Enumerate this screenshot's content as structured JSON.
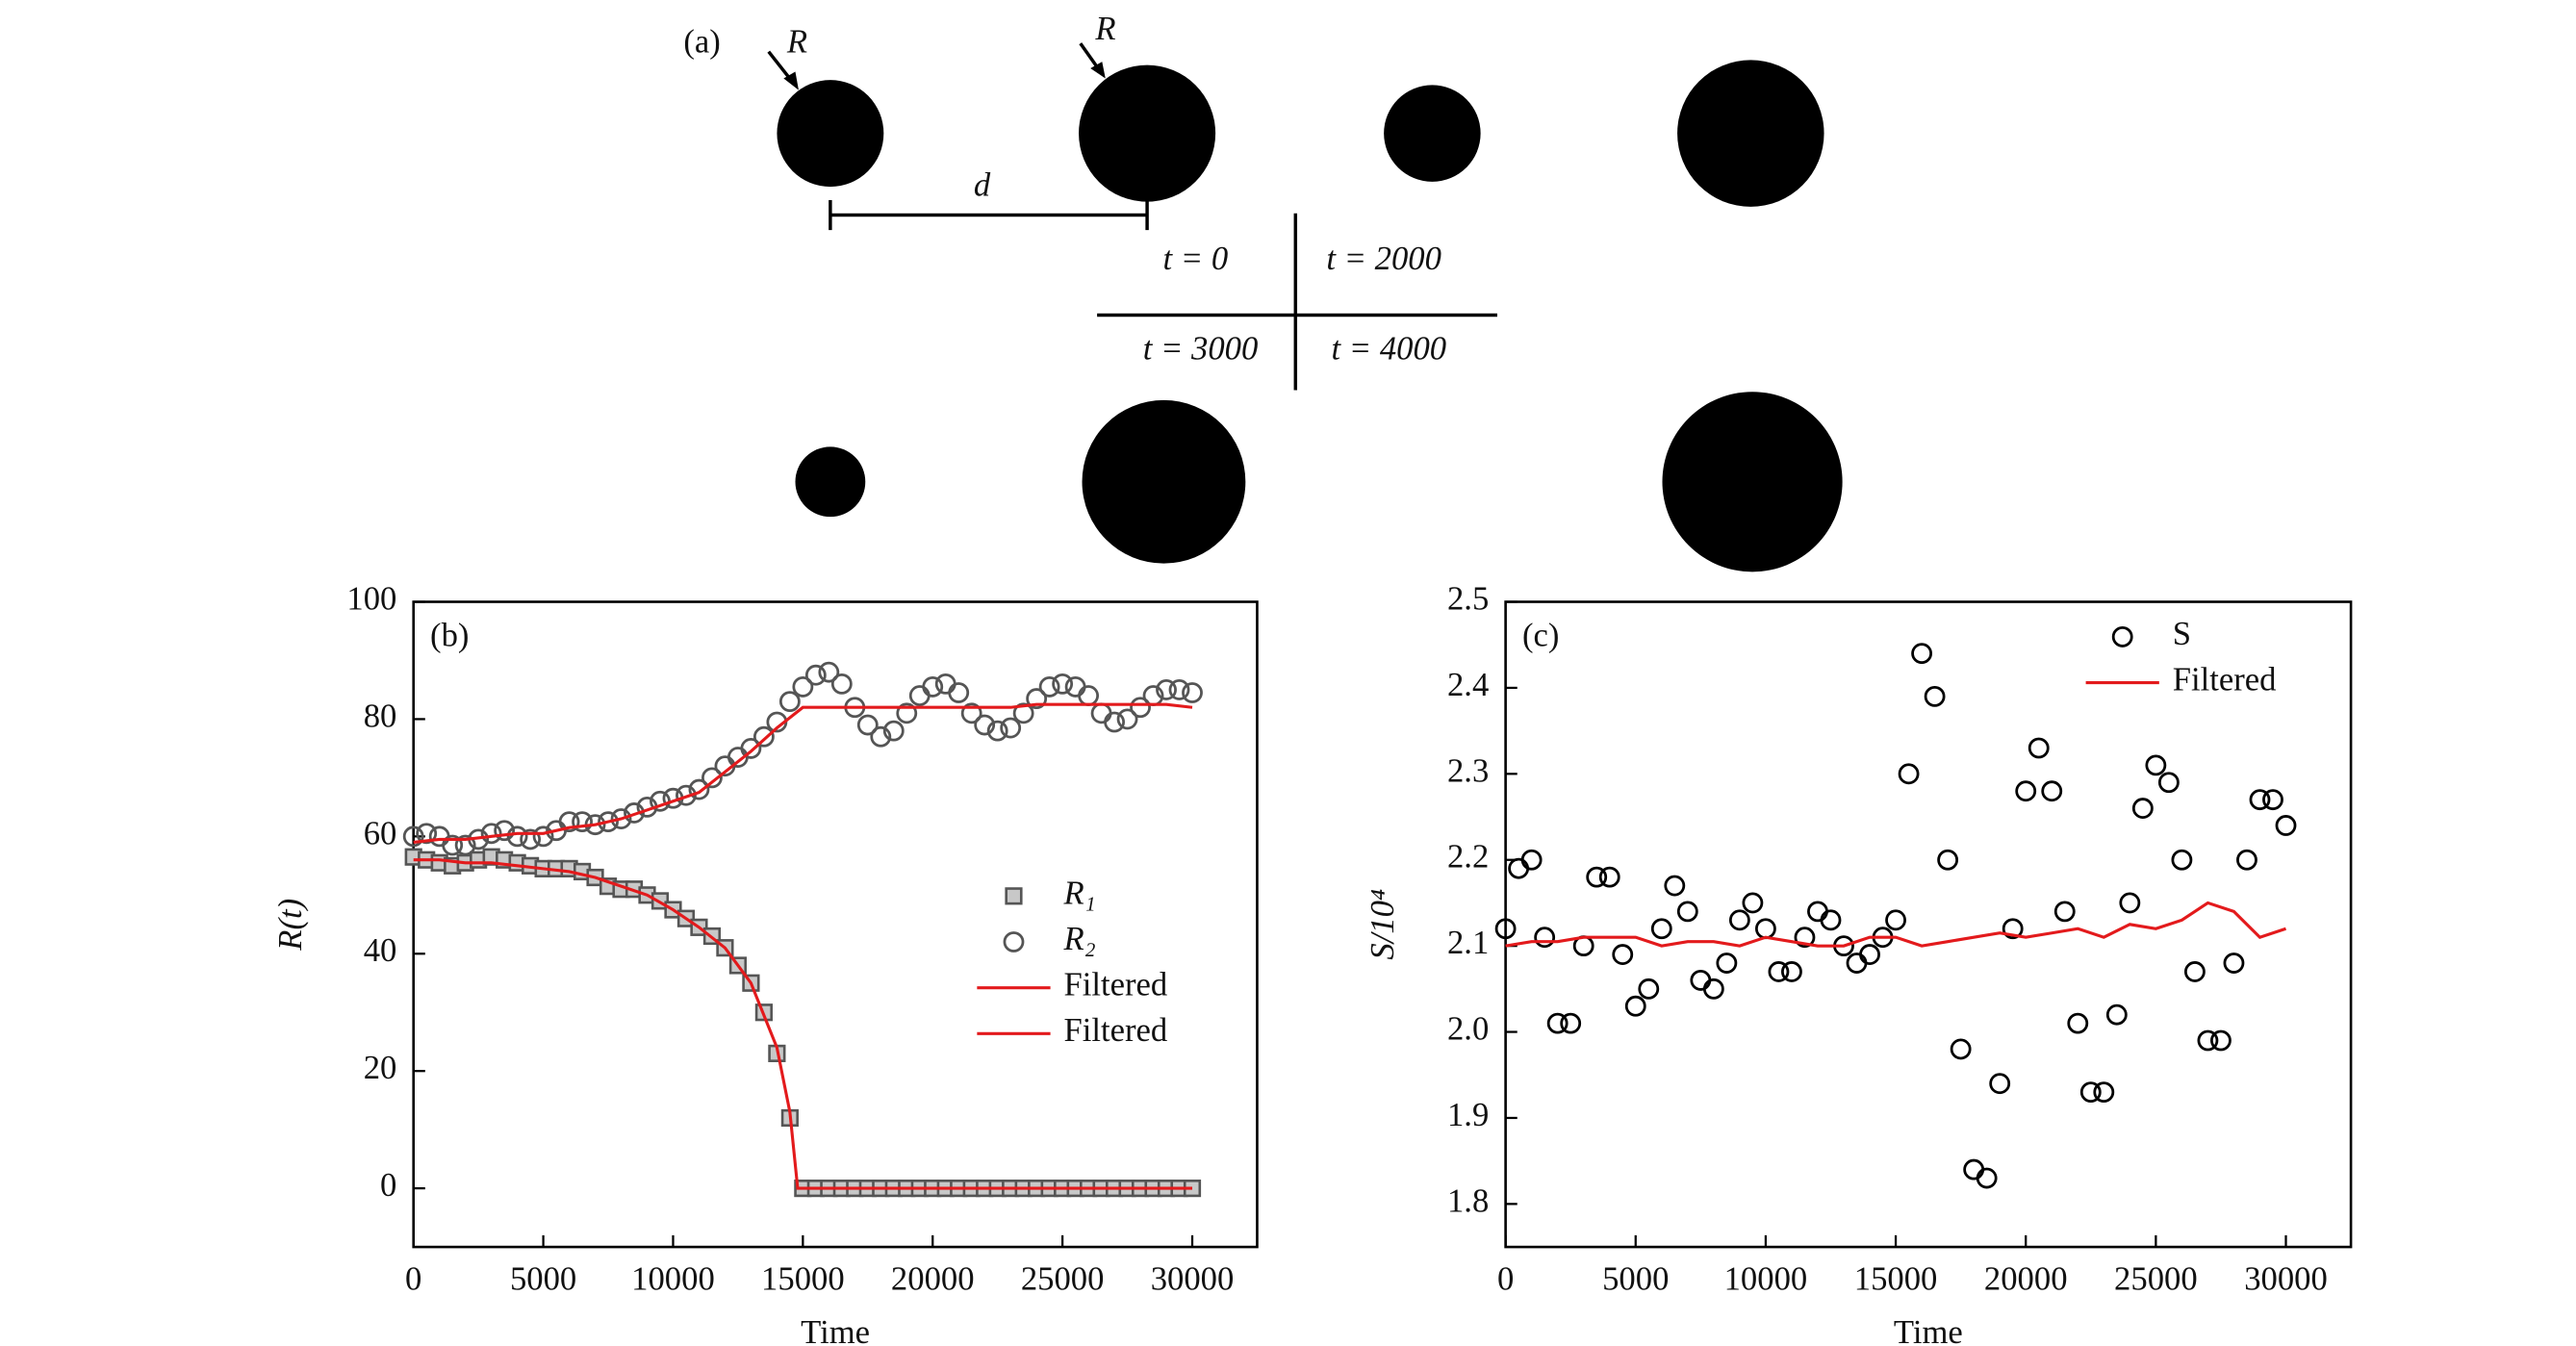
{
  "chart_data": [
    {
      "type": "diagram",
      "panel_label": "(a)",
      "radius_labels": [
        "R",
        "R"
      ],
      "distance_label": "d",
      "time_labels": [
        "t = 0",
        "t = 2000",
        "t = 3000",
        "t = 4000"
      ]
    },
    {
      "type": "scatter",
      "panel_label": "(b)",
      "xlabel": "Time",
      "ylabel": "R(t)",
      "xlim": [
        0,
        32500
      ],
      "ylim": [
        -10,
        100
      ],
      "xticks": [
        0,
        5000,
        10000,
        15000,
        20000,
        25000,
        30000
      ],
      "yticks": [
        0,
        20,
        40,
        60,
        80,
        100
      ],
      "legend": "right",
      "series": [
        {
          "name": "R₁",
          "marker": "square",
          "color": "#555555",
          "x": [
            0,
            500,
            1000,
            1500,
            2000,
            2500,
            3000,
            3500,
            4000,
            4500,
            5000,
            5500,
            6000,
            6500,
            7000,
            7500,
            8000,
            8500,
            9000,
            9500,
            10000,
            10500,
            11000,
            11500,
            12000,
            12500,
            13000,
            13500,
            14000,
            14500,
            15000,
            15500,
            16000,
            16500,
            17000,
            17500,
            18000,
            18500,
            19000,
            19500,
            20000,
            20500,
            21000,
            21500,
            22000,
            22500,
            23000,
            23500,
            24000,
            24500,
            25000,
            25500,
            26000,
            26500,
            27000,
            27500,
            28000,
            28500,
            29000,
            29500,
            30000
          ],
          "values": [
            56.5,
            56,
            55.5,
            55,
            55.5,
            56,
            56.5,
            56,
            55.5,
            55,
            54.5,
            54.5,
            54.5,
            54,
            53,
            51.5,
            51,
            51,
            50,
            49,
            47.5,
            46,
            44.5,
            43,
            41,
            38,
            35,
            30,
            23,
            12,
            0,
            0,
            0,
            0,
            0,
            0,
            0,
            0,
            0,
            0,
            0,
            0,
            0,
            0,
            0,
            0,
            0,
            0,
            0,
            0,
            0,
            0,
            0,
            0,
            0,
            0,
            0,
            0,
            0,
            0,
            0
          ]
        },
        {
          "name": "R₂",
          "marker": "circle",
          "color": "#555555",
          "x": [
            0,
            500,
            1000,
            1500,
            2000,
            2500,
            3000,
            3500,
            4000,
            4500,
            5000,
            5500,
            6000,
            6500,
            7000,
            7500,
            8000,
            8500,
            9000,
            9500,
            10000,
            10500,
            11000,
            11500,
            12000,
            12500,
            13000,
            13500,
            14000,
            14500,
            15000,
            15500,
            16000,
            16500,
            17000,
            17500,
            18000,
            18500,
            19000,
            19500,
            20000,
            20500,
            21000,
            21500,
            22000,
            22500,
            23000,
            23500,
            24000,
            24500,
            25000,
            25500,
            26000,
            26500,
            27000,
            27500,
            28000,
            28500,
            29000,
            29500,
            30000
          ],
          "values": [
            60,
            60.5,
            60,
            58.5,
            58.5,
            59.5,
            60.5,
            61,
            60,
            59.5,
            60,
            61,
            62.5,
            62.5,
            62,
            62.5,
            63,
            64,
            65,
            66,
            66.5,
            67,
            68,
            70,
            72,
            73.5,
            75,
            77,
            79.5,
            83,
            85.5,
            87.5,
            88,
            86,
            82,
            79,
            77,
            78,
            81,
            84,
            85.5,
            86,
            84.5,
            81,
            79,
            78,
            78.5,
            81,
            83.5,
            85.5,
            86,
            85.5,
            84,
            81,
            79.5,
            80,
            82,
            84,
            85,
            85,
            84.5
          ]
        },
        {
          "name": "Filtered",
          "marker": "line",
          "color": "#e31a1c",
          "x": [
            0,
            1000,
            2000,
            3000,
            4000,
            5000,
            6000,
            7000,
            8000,
            9000,
            10000,
            11000,
            12000,
            13000,
            14000,
            14500,
            14800,
            15000,
            16000,
            17000,
            18000,
            19000,
            20000,
            21000,
            22000,
            23000,
            24000,
            25000,
            26000,
            27000,
            28000,
            29000,
            30000
          ],
          "values": [
            56,
            56,
            55.5,
            55.5,
            55,
            54.5,
            54,
            53,
            51.5,
            50,
            47.5,
            44.5,
            41,
            35,
            24,
            13,
            0,
            0,
            0,
            0,
            0,
            0,
            0,
            0,
            0,
            0,
            0,
            0,
            0,
            0,
            0,
            0,
            0
          ]
        },
        {
          "name": "Filtered",
          "marker": "line",
          "color": "#e31a1c",
          "x": [
            0,
            1000,
            2000,
            3000,
            4000,
            5000,
            6000,
            7000,
            8000,
            9000,
            10000,
            11000,
            12000,
            13000,
            14000,
            15000,
            16000,
            17000,
            18000,
            19000,
            20000,
            21000,
            22000,
            23000,
            24000,
            25000,
            26000,
            27000,
            28000,
            29000,
            30000
          ],
          "values": [
            59,
            59.5,
            59.5,
            60,
            60.5,
            60.5,
            61.5,
            62,
            63,
            64.5,
            66,
            67.5,
            71,
            74.5,
            78.5,
            82,
            82,
            82,
            82,
            82,
            82,
            82,
            82,
            82,
            82.5,
            82.5,
            82.5,
            82.5,
            82.5,
            82.5,
            82
          ]
        }
      ]
    },
    {
      "type": "scatter",
      "panel_label": "(c)",
      "xlabel": "Time",
      "ylabel": "S/10⁴",
      "xlim": [
        0,
        32500
      ],
      "ylim": [
        1.75,
        2.5
      ],
      "xticks": [
        0,
        5000,
        10000,
        15000,
        20000,
        25000,
        30000
      ],
      "yticks": [
        1.8,
        1.9,
        {
          "value": 2,
          "label": "2.0"
        },
        2.1,
        2.2,
        2.3,
        2.4,
        2.5
      ],
      "legend": "top-right",
      "series": [
        {
          "name": "S",
          "marker": "circle",
          "color": "#000000",
          "x": [
            0,
            500,
            1000,
            1500,
            2000,
            2500,
            3000,
            3500,
            4000,
            4500,
            5000,
            5500,
            6000,
            6500,
            7000,
            7500,
            8000,
            8500,
            9000,
            9500,
            10000,
            10500,
            11000,
            11500,
            12000,
            12500,
            13000,
            13500,
            14000,
            14500,
            15000,
            15500,
            16000,
            16500,
            17000,
            17500,
            18000,
            18500,
            19000,
            19500,
            20000,
            20500,
            21000,
            21500,
            22000,
            22500,
            23000,
            23500,
            24000,
            24500,
            25000,
            25500,
            26000,
            26500,
            27000,
            27500,
            28000,
            28500,
            29000,
            29500,
            30000
          ],
          "values": [
            2.12,
            2.19,
            2.2,
            2.11,
            2.01,
            2.01,
            2.1,
            2.18,
            2.18,
            2.09,
            2.03,
            2.05,
            2.12,
            2.17,
            2.14,
            2.06,
            2.05,
            2.08,
            2.13,
            2.15,
            2.12,
            2.07,
            2.07,
            2.11,
            2.14,
            2.13,
            2.1,
            2.08,
            2.09,
            2.11,
            2.13,
            2.3,
            2.44,
            2.39,
            2.2,
            1.98,
            1.84,
            1.83,
            1.94,
            2.12,
            2.28,
            2.33,
            2.28,
            2.14,
            2.01,
            1.93,
            1.93,
            2.02,
            2.15,
            2.26,
            2.31,
            2.29,
            2.2,
            2.07,
            1.99,
            1.99,
            2.08,
            2.2,
            2.27,
            2.27,
            2.24
          ]
        },
        {
          "name": "Filtered",
          "marker": "line",
          "color": "#e31a1c",
          "x": [
            0,
            1000,
            2000,
            3000,
            4000,
            5000,
            6000,
            7000,
            8000,
            9000,
            10000,
            11000,
            12000,
            13000,
            14000,
            15000,
            16000,
            17000,
            18000,
            19000,
            20000,
            21000,
            22000,
            23000,
            24000,
            25000,
            26000,
            27000,
            28000,
            29000,
            30000
          ],
          "values": [
            2.1,
            2.105,
            2.105,
            2.11,
            2.11,
            2.11,
            2.1,
            2.105,
            2.105,
            2.1,
            2.11,
            2.105,
            2.1,
            2.1,
            2.11,
            2.11,
            2.1,
            2.105,
            2.11,
            2.115,
            2.11,
            2.115,
            2.12,
            2.11,
            2.125,
            2.12,
            2.13,
            2.15,
            2.14,
            2.11,
            2.12
          ]
        }
      ]
    }
  ]
}
